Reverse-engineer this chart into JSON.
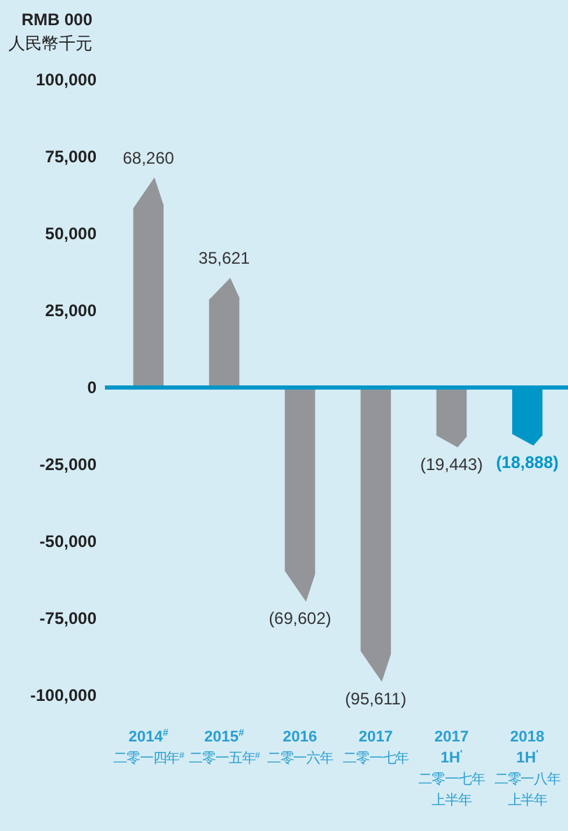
{
  "chart_data": {
    "type": "bar",
    "ylabel": "RMB 000\n人民幣千元",
    "categories": [
      "2014$^{#}$\n二零一四年$^{#}$",
      "2015$^{#}$\n二零一五年$^{#}$",
      "2016\n二零一六年",
      "2017\n二零一七年",
      "2017\n1H$^{'}$\n二零一七年上半年",
      "2018\n1H$^{'}$\n二零一八年上半年"
    ],
    "values": [
      68260,
      35621,
      -69602,
      -95611,
      -19443,
      -18888
    ],
    "colors": [
      "#939598",
      "#939598",
      "#939598",
      "#939598",
      "#939598",
      "#0096c8"
    ],
    "value_labels": [
      "68,260",
      "35,621",
      "(69,602)",
      "(95,611)",
      "(19,443)",
      "(18,888)"
    ],
    "ylim": [
      -100000,
      100000
    ],
    "yticks": [
      {
        "value": -100000,
        "label": "-100,000"
      },
      {
        "value": -75000,
        "label": "-75,000"
      },
      {
        "value": -50000,
        "label": "-50,000"
      },
      {
        "value": -25000,
        "label": "-25,000"
      },
      0,
      {
        "value": 25000,
        "label": "25,000"
      },
      {
        "value": 50000,
        "label": "50,000"
      },
      {
        "value": 75000,
        "label": "75,000"
      },
      {
        "value": 100000,
        "label": "100,000"
      }
    ],
    "ref_lines": [
      {
        "axis": "y",
        "value": 0,
        "color": "#0096c8"
      }
    ],
    "grid": false
  }
}
